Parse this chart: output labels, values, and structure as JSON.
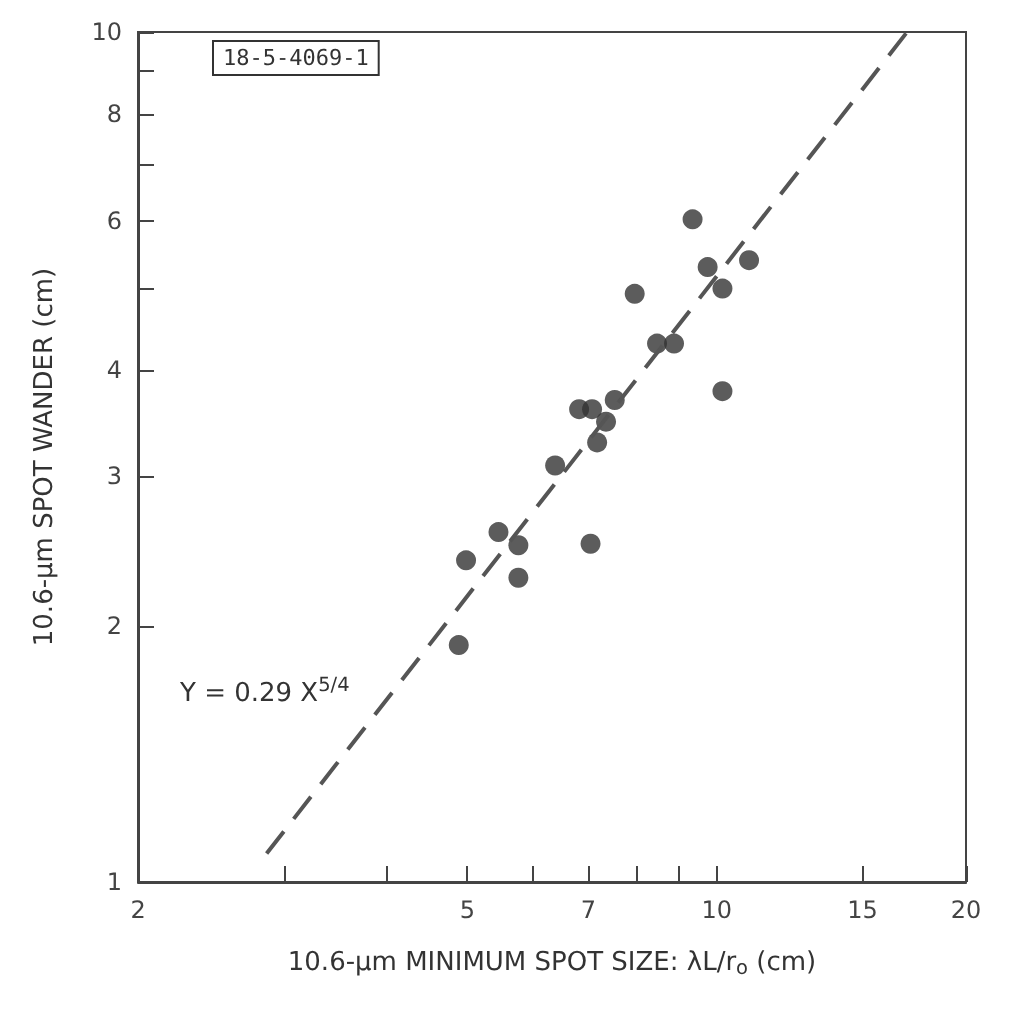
{
  "chart_data": {
    "type": "scatter",
    "xlabel": "10.6-μm MINIMUM SPOT SIZE: λL/r$_{o}$ (cm)",
    "ylabel": "10.6-μm SPOT WANDER (cm)",
    "log": "xy",
    "xlim": [
      2,
      20
    ],
    "ylim": [
      1,
      10
    ],
    "xticks": [
      2,
      {
        "value": 3,
        "label": null
      },
      {
        "value": 4,
        "label": null
      },
      5,
      {
        "value": 6,
        "label": null
      },
      7,
      {
        "value": 8,
        "label": null
      },
      {
        "value": 9,
        "label": null
      },
      10,
      15,
      20
    ],
    "yticks": [
      1,
      2,
      3,
      4,
      {
        "value": 5,
        "label": null
      },
      6,
      {
        "value": 7,
        "label": null
      },
      8,
      {
        "value": 9,
        "label": null
      },
      10
    ],
    "grid": false,
    "marker": "circle",
    "series": [
      {
        "color": "#333333",
        "x": [
          4.88,
          4.98,
          5.45,
          5.76,
          5.76,
          7.04,
          6.38,
          6.82,
          7.07,
          7.17,
          7.35,
          7.53,
          7.96,
          8.47,
          8.88,
          9.35,
          9.75,
          10.16,
          10.16,
          10.94
        ],
        "values": [
          1.9,
          2.39,
          2.58,
          2.49,
          2.28,
          2.5,
          3.09,
          3.6,
          3.6,
          3.29,
          3.48,
          3.69,
          4.92,
          4.3,
          4.3,
          6.02,
          5.29,
          4.99,
          3.78,
          5.39
        ]
      },
      {
        "type": "line",
        "color": "#555555",
        "line_style": "dashed",
        "marker": "none",
        "x": [
          2.86,
          16.98
        ],
        "values": [
          1.08,
          10
        ]
      }
    ],
    "annotations": [
      "18-5-4069-1",
      "Y = 0.29 X$^{5/4}$"
    ]
  }
}
